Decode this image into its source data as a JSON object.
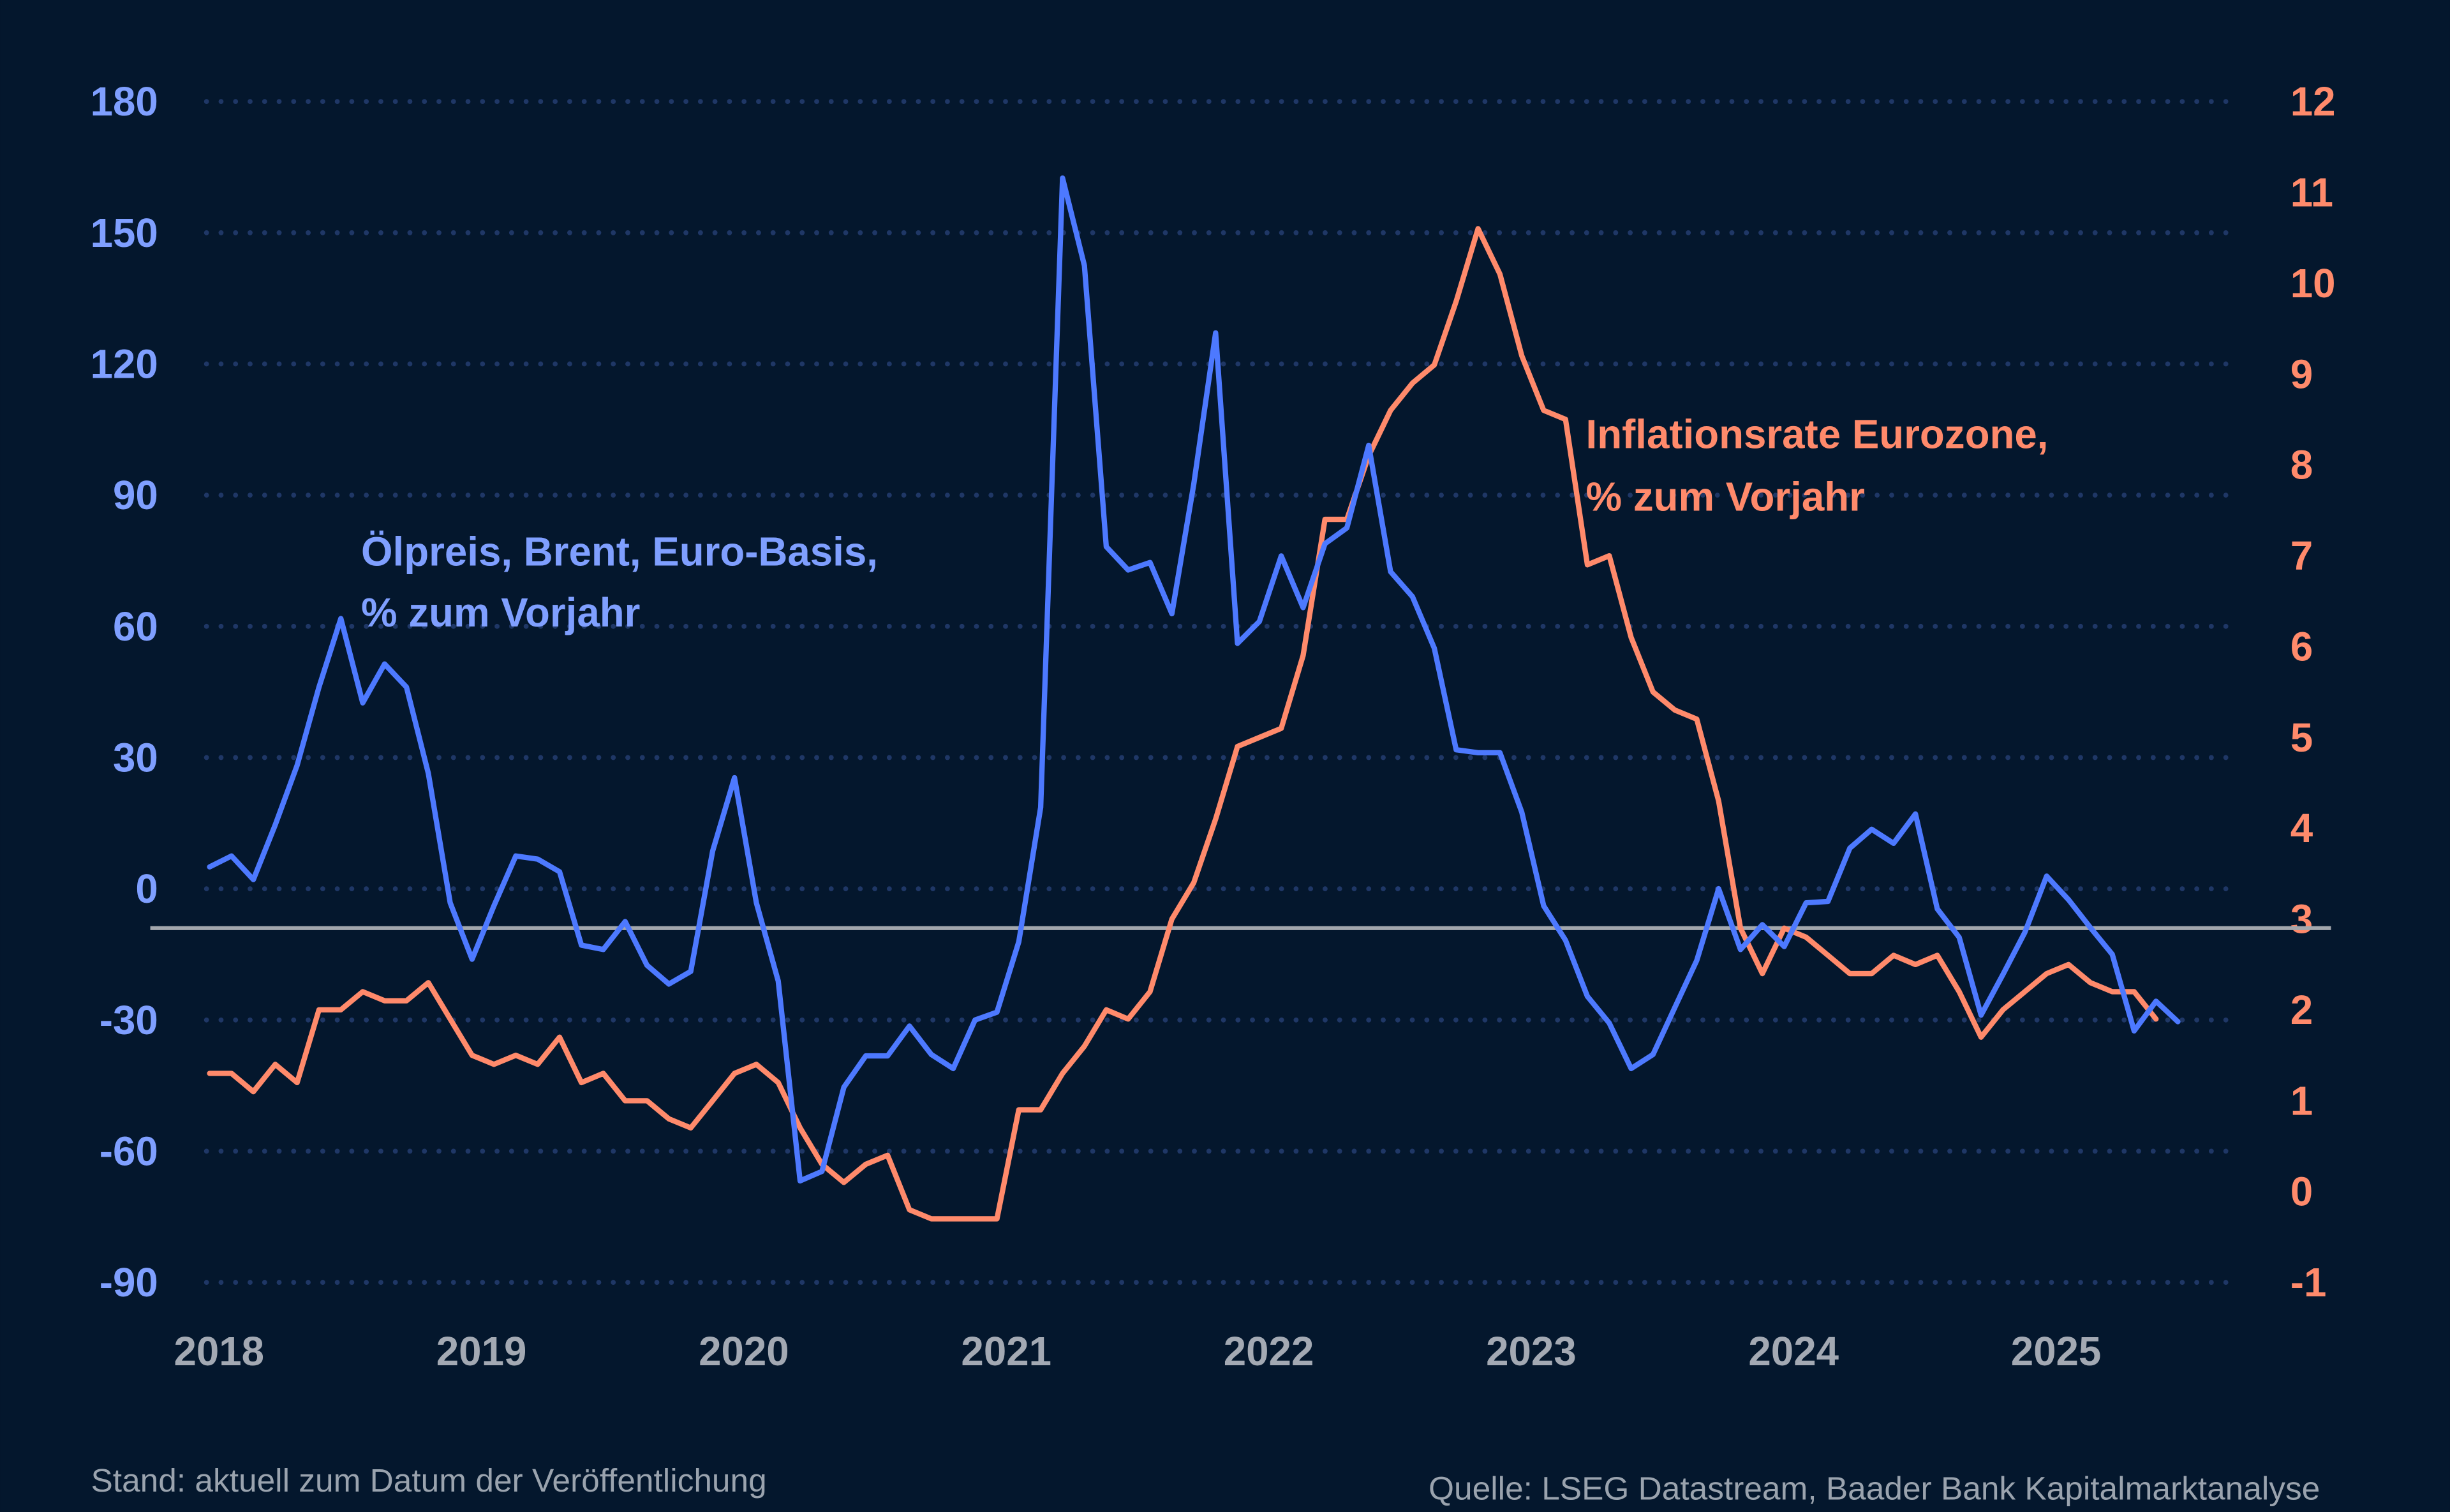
{
  "footer": {
    "left": "Stand: aktuell zum Datum der Veröffentlichung",
    "right": "Quelle: LSEG Datastream, Baader Bank Kapitalmarktanalyse"
  },
  "chart_data": {
    "type": "line",
    "title": "",
    "x_start": "2018-01",
    "x_frequency": "monthly",
    "x_tick_labels": [
      "2018",
      "2019",
      "2020",
      "2021",
      "2022",
      "2023",
      "2024",
      "2025"
    ],
    "y_left": {
      "range": [
        -90,
        180
      ],
      "ticks": [
        180,
        150,
        120,
        90,
        60,
        30,
        0,
        -30,
        -60,
        -90
      ],
      "color": "#7f9fff"
    },
    "y_right": {
      "range": [
        -1,
        12
      ],
      "ticks": [
        12,
        11,
        10,
        9,
        8,
        7,
        6,
        5,
        4,
        3,
        2,
        1,
        0,
        -1
      ],
      "color": "#ff8a6b"
    },
    "grid": "horizontal dotted",
    "reference_line_left_axis": -9,
    "colors": {
      "background": "#04172d",
      "oil": "#4d79ff",
      "inflation": "#ff8a6b",
      "reference_line": "#a3a7ad",
      "grid": "#1f3766",
      "x_ticks": "#a3a9b3"
    },
    "series": [
      {
        "name": "Ölpreis, Brent, Euro-Basis,",
        "name_line2": "% zum Vorjahr",
        "axis": "left",
        "values": [
          5.0,
          7.5,
          2.1,
          14.6,
          28.2,
          46.1,
          61.8,
          42.5,
          51.4,
          46.1,
          26.4,
          -3.2,
          -16.1,
          -3.9,
          7.5,
          6.8,
          3.9,
          -12.9,
          -13.9,
          -7.5,
          -17.5,
          -21.8,
          -18.9,
          8.6,
          25.4,
          -3.2,
          -21.1,
          -66.8,
          -64.6,
          -45.4,
          -38.2,
          -38.2,
          -31.4,
          -37.9,
          -41.1,
          -30.0,
          -28.2,
          -12.1,
          18.6,
          162.5,
          142.5,
          78.2,
          72.9,
          74.6,
          62.9,
          92.5,
          127.1,
          56.1,
          61.1,
          76.1,
          64.3,
          78.9,
          82.5,
          101.4,
          72.5,
          66.8,
          55.0,
          31.8,
          31.1,
          31.1,
          17.5,
          -3.9,
          -11.8,
          -24.6,
          -30.7,
          -41.1,
          -37.9,
          -27.1,
          -16.4,
          0.0,
          -13.9,
          -8.2,
          -13.2,
          -3.2,
          -2.9,
          9.3,
          13.6,
          10.4,
          17.1,
          -4.6,
          -11.1,
          -28.9,
          -19.6,
          -10.0,
          2.9,
          -2.5,
          -8.9,
          -15.0,
          -32.5,
          -25.7,
          -30.4
        ]
      },
      {
        "name": "Inflationsrate Eurozone,",
        "name_line2": "% zum Vorjahr",
        "axis": "right",
        "values": [
          1.3,
          1.3,
          1.1,
          1.4,
          1.2,
          2.0,
          2.0,
          2.2,
          2.1,
          2.1,
          2.3,
          1.9,
          1.5,
          1.4,
          1.5,
          1.4,
          1.7,
          1.2,
          1.3,
          1.0,
          1.0,
          0.8,
          0.7,
          1.0,
          1.3,
          1.4,
          1.2,
          0.7,
          0.3,
          0.1,
          0.3,
          0.4,
          -0.2,
          -0.3,
          -0.3,
          -0.3,
          -0.3,
          0.9,
          0.9,
          1.3,
          1.6,
          2.0,
          1.9,
          2.2,
          3.0,
          3.4,
          4.1,
          4.9,
          5.0,
          5.1,
          5.9,
          7.4,
          7.4,
          8.1,
          8.6,
          8.9,
          9.1,
          9.8,
          10.6,
          10.1,
          9.2,
          8.6,
          8.5,
          6.9,
          7.0,
          6.1,
          5.5,
          5.3,
          5.2,
          4.3,
          2.9,
          2.4,
          2.9,
          2.8,
          2.6,
          2.4,
          2.4,
          2.6,
          2.5,
          2.6,
          2.2,
          1.7,
          2.0,
          2.2,
          2.4,
          2.5,
          2.3,
          2.2,
          2.2,
          1.9
        ]
      }
    ]
  }
}
